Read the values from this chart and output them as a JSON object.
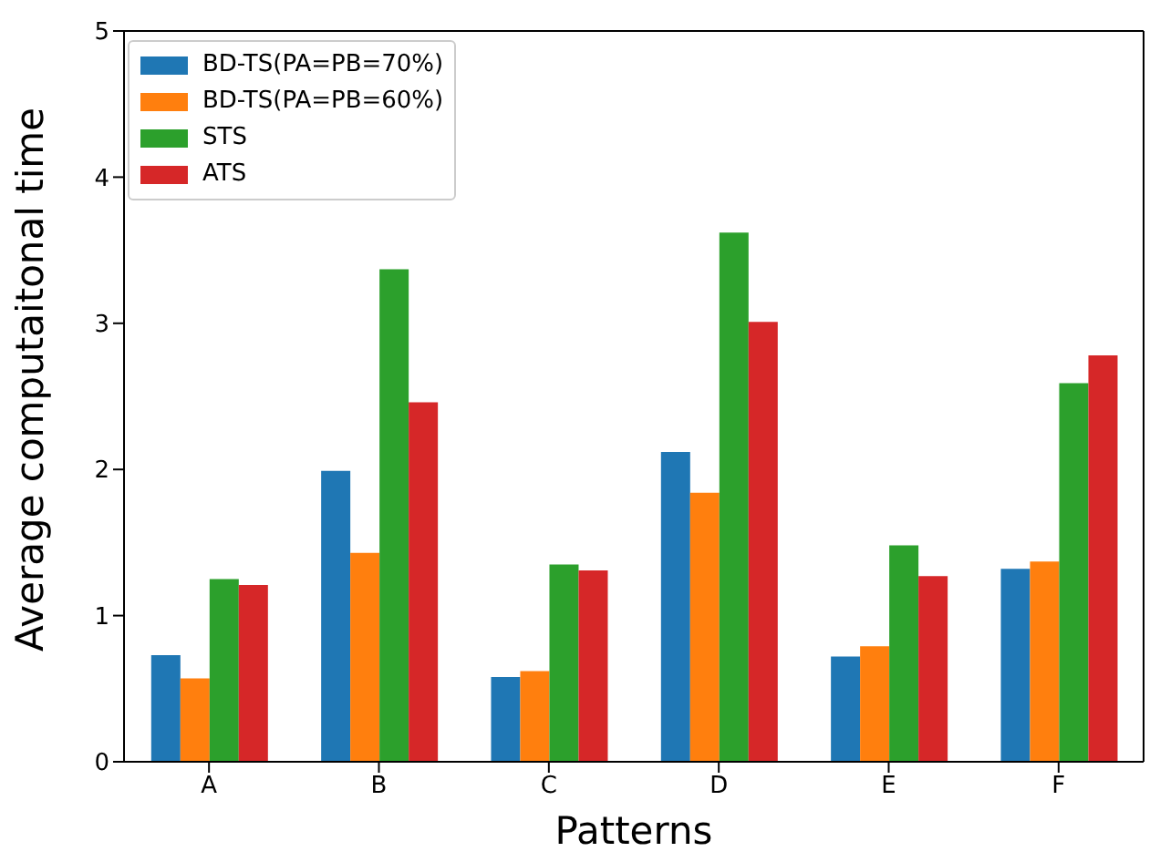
{
  "chart_data": {
    "type": "bar",
    "xlabel": "Patterns",
    "ylabel": "Average computaitonal time",
    "categories": [
      "A",
      "B",
      "C",
      "D",
      "E",
      "F"
    ],
    "series": [
      {
        "name": "BD-TS(PA=PB=70%)",
        "color": "#1f77b4",
        "values": [
          0.73,
          1.99,
          0.58,
          2.12,
          0.72,
          1.32
        ]
      },
      {
        "name": "BD-TS(PA=PB=60%)",
        "color": "#ff7f0e",
        "values": [
          0.57,
          1.43,
          0.62,
          1.84,
          0.79,
          1.37
        ]
      },
      {
        "name": "STS",
        "color": "#2ca02c",
        "values": [
          1.25,
          3.37,
          1.35,
          3.62,
          1.48,
          2.59
        ]
      },
      {
        "name": "ATS",
        "color": "#d62728",
        "values": [
          1.21,
          2.46,
          1.31,
          3.01,
          1.27,
          2.78
        ]
      }
    ],
    "ylim": [
      0,
      5
    ],
    "yticks": [
      0,
      1,
      2,
      3,
      4,
      5
    ],
    "legend": "top left"
  }
}
